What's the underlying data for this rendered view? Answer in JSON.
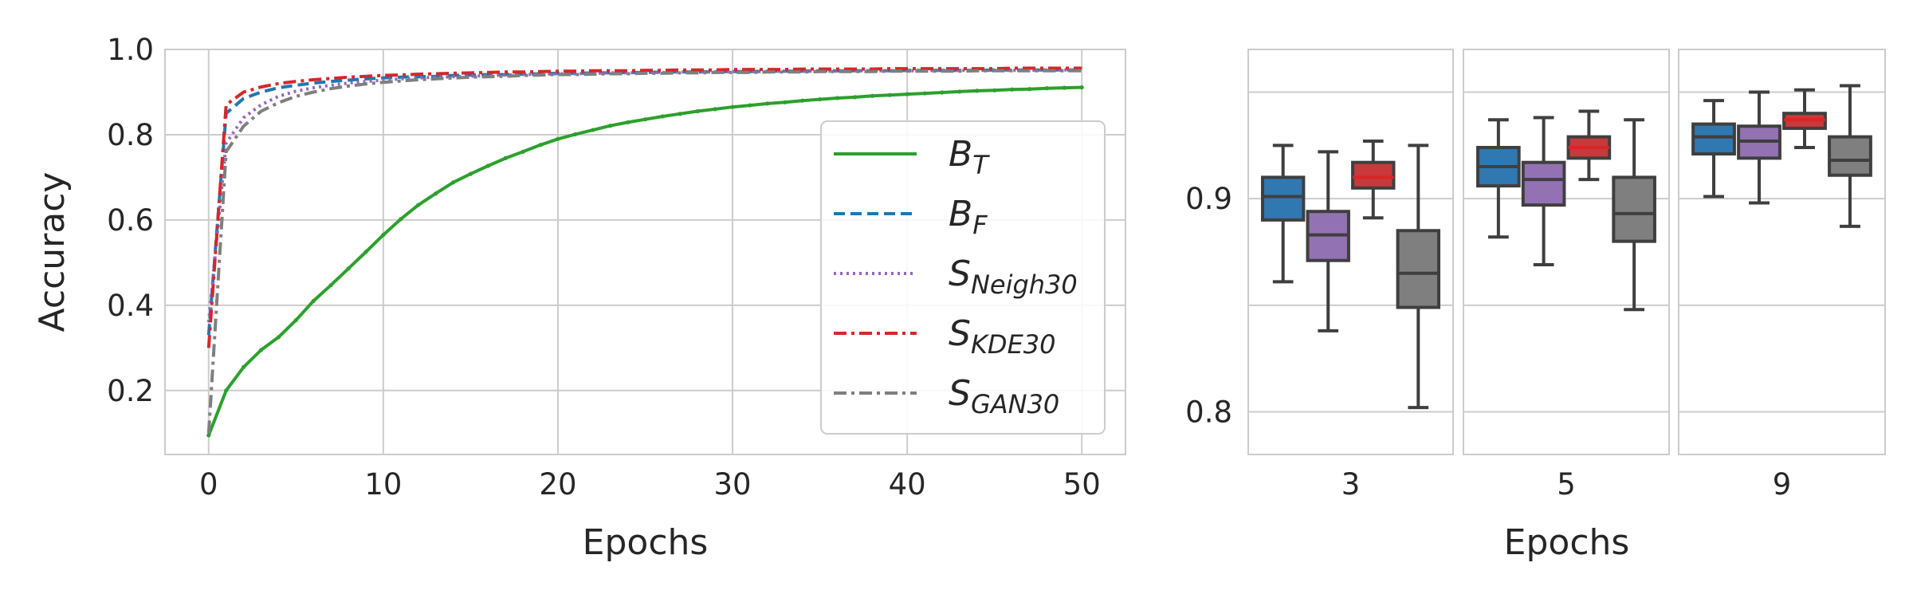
{
  "chart_data": [
    {
      "type": "line",
      "xlabel": "Epochs",
      "ylabel": "Accuracy",
      "xlim": [
        -2.5,
        52.5
      ],
      "ylim": [
        0.05,
        1.0
      ],
      "xticks": [
        0,
        10,
        20,
        30,
        40,
        50
      ],
      "yticks": [
        0.2,
        0.4,
        0.6,
        0.8,
        1.0
      ],
      "x_tick_labels": [
        "0",
        "10",
        "20",
        "30",
        "40",
        "50"
      ],
      "y_tick_labels": [
        "0.2",
        "0.4",
        "0.6",
        "0.8",
        "1.0"
      ],
      "grid": true,
      "legend_position": "lower-right",
      "x": [
        0,
        1,
        2,
        3,
        4,
        5,
        6,
        7,
        8,
        9,
        10,
        11,
        12,
        13,
        14,
        15,
        16,
        17,
        18,
        19,
        20,
        21,
        22,
        23,
        24,
        25,
        26,
        27,
        28,
        29,
        30,
        31,
        32,
        33,
        34,
        35,
        36,
        37,
        38,
        39,
        40,
        41,
        42,
        43,
        44,
        45,
        46,
        47,
        48,
        49,
        50
      ],
      "series": [
        {
          "name": "B_T",
          "legend_base": "B",
          "legend_sub": "T",
          "color": "#2ca02c",
          "style": "solid",
          "values": [
            0.095,
            0.2,
            0.255,
            0.295,
            0.325,
            0.365,
            0.41,
            0.447,
            0.486,
            0.525,
            0.565,
            0.602,
            0.635,
            0.662,
            0.688,
            0.708,
            0.727,
            0.745,
            0.76,
            0.776,
            0.79,
            0.801,
            0.811,
            0.821,
            0.829,
            0.836,
            0.843,
            0.849,
            0.855,
            0.86,
            0.865,
            0.869,
            0.873,
            0.876,
            0.88,
            0.883,
            0.886,
            0.888,
            0.891,
            0.893,
            0.895,
            0.897,
            0.899,
            0.901,
            0.903,
            0.904,
            0.906,
            0.907,
            0.909,
            0.91,
            0.911
          ]
        },
        {
          "name": "B_F",
          "legend_base": "B",
          "legend_sub": "F",
          "color": "#1f77b4",
          "style": "dashed",
          "values": [
            0.33,
            0.85,
            0.885,
            0.9,
            0.91,
            0.916,
            0.921,
            0.925,
            0.928,
            0.931,
            0.933,
            0.935,
            0.936,
            0.937,
            0.939,
            0.94,
            0.941,
            0.941,
            0.942,
            0.943,
            0.944,
            0.944,
            0.945,
            0.945,
            0.946,
            0.946,
            0.947,
            0.947,
            0.947,
            0.948,
            0.948,
            0.948,
            0.949,
            0.949,
            0.949,
            0.95,
            0.95,
            0.95,
            0.95,
            0.95,
            0.951,
            0.951,
            0.951,
            0.951,
            0.951,
            0.952,
            0.952,
            0.952,
            0.952,
            0.952,
            0.952
          ]
        },
        {
          "name": "S_Neigh30",
          "legend_base": "S",
          "legend_sub": "Neigh30",
          "color": "#9467bd",
          "style": "dotted",
          "values": [
            0.36,
            0.78,
            0.84,
            0.87,
            0.89,
            0.902,
            0.91,
            0.916,
            0.921,
            0.925,
            0.928,
            0.931,
            0.933,
            0.935,
            0.936,
            0.937,
            0.939,
            0.94,
            0.941,
            0.942,
            0.943,
            0.943,
            0.944,
            0.945,
            0.945,
            0.946,
            0.946,
            0.947,
            0.947,
            0.947,
            0.948,
            0.948,
            0.948,
            0.949,
            0.949,
            0.949,
            0.949,
            0.95,
            0.95,
            0.95,
            0.95,
            0.95,
            0.951,
            0.951,
            0.951,
            0.951,
            0.951,
            0.951,
            0.952,
            0.952,
            0.952
          ]
        },
        {
          "name": "S_KDE30",
          "legend_base": "S",
          "legend_sub": "KDE30",
          "color": "#d62728",
          "style": "dashdot",
          "values": [
            0.3,
            0.87,
            0.9,
            0.912,
            0.92,
            0.925,
            0.929,
            0.932,
            0.935,
            0.937,
            0.939,
            0.94,
            0.942,
            0.943,
            0.944,
            0.945,
            0.946,
            0.947,
            0.947,
            0.948,
            0.949,
            0.949,
            0.95,
            0.95,
            0.95,
            0.951,
            0.951,
            0.952,
            0.952,
            0.952,
            0.953,
            0.953,
            0.953,
            0.953,
            0.954,
            0.954,
            0.954,
            0.954,
            0.954,
            0.955,
            0.955,
            0.955,
            0.955,
            0.955,
            0.955,
            0.955,
            0.956,
            0.956,
            0.956,
            0.956,
            0.956
          ]
        },
        {
          "name": "S_GAN30",
          "legend_base": "S",
          "legend_sub": "GAN30",
          "color": "#7f7f7f",
          "style": "dashdot",
          "values": [
            0.1,
            0.76,
            0.82,
            0.855,
            0.875,
            0.89,
            0.9,
            0.908,
            0.914,
            0.919,
            0.923,
            0.926,
            0.929,
            0.931,
            0.933,
            0.935,
            0.936,
            0.937,
            0.939,
            0.94,
            0.941,
            0.941,
            0.942,
            0.943,
            0.943,
            0.944,
            0.944,
            0.945,
            0.945,
            0.946,
            0.946,
            0.946,
            0.947,
            0.947,
            0.947,
            0.948,
            0.948,
            0.948,
            0.948,
            0.949,
            0.949,
            0.949,
            0.949,
            0.949,
            0.95,
            0.95,
            0.95,
            0.95,
            0.95,
            0.95,
            0.95
          ]
        }
      ]
    },
    {
      "type": "box",
      "xlabel": "Epochs",
      "ylim": [
        0.78,
        0.97
      ],
      "yticks": [
        0.8,
        0.85,
        0.9,
        0.95
      ],
      "y_tick_labels": [
        "0.8",
        "",
        "0.9",
        ""
      ],
      "grid": true,
      "median_color": "#d62728",
      "outline_color": "#3f3f3f",
      "categories": [
        "3",
        "5",
        "9"
      ],
      "series": [
        {
          "name": "B_F",
          "color": "#2f78b2",
          "boxes": [
            {
              "whislo": 0.861,
              "q1": 0.89,
              "med": 0.901,
              "q3": 0.91,
              "whishi": 0.925
            },
            {
              "whislo": 0.882,
              "q1": 0.906,
              "med": 0.915,
              "q3": 0.924,
              "whishi": 0.937
            },
            {
              "whislo": 0.901,
              "q1": 0.921,
              "med": 0.929,
              "q3": 0.935,
              "whishi": 0.946
            }
          ]
        },
        {
          "name": "S_Neigh30",
          "color": "#9372b3",
          "boxes": [
            {
              "whislo": 0.838,
              "q1": 0.871,
              "med": 0.883,
              "q3": 0.894,
              "whishi": 0.922
            },
            {
              "whislo": 0.869,
              "q1": 0.897,
              "med": 0.909,
              "q3": 0.917,
              "whishi": 0.938
            },
            {
              "whislo": 0.898,
              "q1": 0.919,
              "med": 0.927,
              "q3": 0.934,
              "whishi": 0.95
            }
          ]
        },
        {
          "name": "S_KDE30",
          "color": "#c8393b",
          "boxes": [
            {
              "whislo": 0.891,
              "q1": 0.905,
              "med": 0.91,
              "q3": 0.917,
              "whishi": 0.927
            },
            {
              "whislo": 0.909,
              "q1": 0.919,
              "med": 0.924,
              "q3": 0.929,
              "whishi": 0.941
            },
            {
              "whislo": 0.924,
              "q1": 0.933,
              "med": 0.937,
              "q3": 0.94,
              "whishi": 0.951
            }
          ]
        },
        {
          "name": "S_GAN30",
          "color": "#7f7f7f",
          "boxes": [
            {
              "whislo": 0.802,
              "q1": 0.849,
              "med": 0.865,
              "q3": 0.885,
              "whishi": 0.925
            },
            {
              "whislo": 0.848,
              "q1": 0.88,
              "med": 0.893,
              "q3": 0.91,
              "whishi": 0.937
            },
            {
              "whislo": 0.887,
              "q1": 0.911,
              "med": 0.918,
              "q3": 0.929,
              "whishi": 0.953
            }
          ]
        }
      ]
    }
  ]
}
